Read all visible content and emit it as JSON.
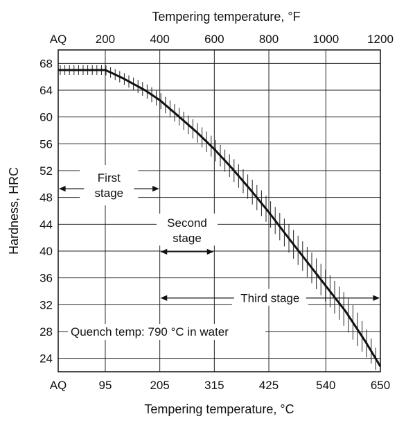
{
  "chart_data": {
    "type": "line",
    "title": "",
    "xlabel_bottom": "Tempering temperature, °C",
    "xlabel_top": "Tempering temperature, °F",
    "ylabel": "Hardness, HRC",
    "x_unit": "°C",
    "xlim": [
      0,
      650
    ],
    "ylim": [
      22,
      70
    ],
    "grid": true,
    "bottom_ticks": [
      {
        "label": "AQ",
        "value": 0
      },
      {
        "label": "95",
        "value": 95
      },
      {
        "label": "205",
        "value": 205
      },
      {
        "label": "315",
        "value": 315
      },
      {
        "label": "425",
        "value": 425
      },
      {
        "label": "540",
        "value": 540
      },
      {
        "label": "650",
        "value": 650
      }
    ],
    "top_ticks": [
      {
        "label": "AQ",
        "value": 0
      },
      {
        "label": "200",
        "value": 95
      },
      {
        "label": "400",
        "value": 205
      },
      {
        "label": "600",
        "value": 315
      },
      {
        "label": "800",
        "value": 425
      },
      {
        "label": "1000",
        "value": 540
      },
      {
        "label": "1200",
        "value": 650
      }
    ],
    "y_ticks": [
      "68",
      "64",
      "60",
      "56",
      "52",
      "48",
      "44",
      "40",
      "36",
      "32",
      "28",
      "24"
    ],
    "series": [
      {
        "x": [
          0,
          50,
          95,
          110,
          130,
          150,
          175,
          205,
          240,
          280,
          315,
          350,
          385,
          425,
          460,
          500,
          540,
          580,
          620,
          650
        ],
        "y": [
          67,
          67,
          67,
          66.5,
          65.8,
          65,
          64,
          62.5,
          60.3,
          57.7,
          55.2,
          52.4,
          49.4,
          45.8,
          42.4,
          38.6,
          34.8,
          31,
          26.5,
          22.8
        ]
      }
    ],
    "annotations": {
      "first_stage": [
        "First",
        "stage"
      ],
      "second_stage": [
        "Second",
        "stage"
      ],
      "third_stage": "Third stage",
      "quench": "Quench temp: 790 °C in water"
    },
    "stage_ranges": {
      "first": [
        0,
        205
      ],
      "second": [
        205,
        315
      ],
      "third": [
        205,
        650
      ]
    },
    "stage_levels_hrc": {
      "first": 49.3,
      "second": 39.9,
      "third": 33
    }
  }
}
